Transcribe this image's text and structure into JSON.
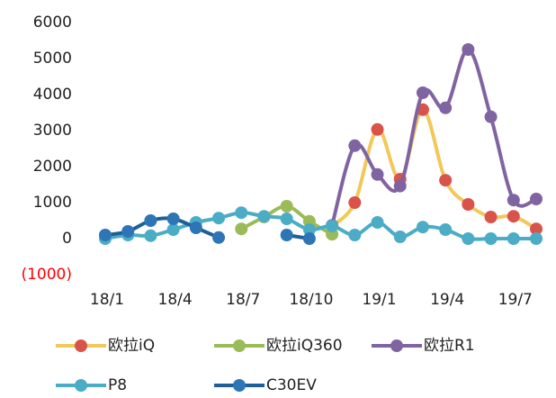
{
  "chart_data": {
    "type": "line",
    "categories": [
      "18/1",
      null,
      null,
      "18/4",
      null,
      null,
      "18/7",
      null,
      null,
      "18/10",
      null,
      null,
      "19/1",
      null,
      null,
      "19/4",
      null,
      null,
      "19/7",
      null
    ],
    "series": [
      {
        "name": "欧拉iQ",
        "color": "#f2c85b",
        "marker_color": "#d9534a",
        "values": [
          null,
          null,
          null,
          null,
          null,
          null,
          null,
          null,
          null,
          null,
          350,
          1000,
          3030,
          1650,
          3580,
          1620,
          950,
          600,
          620,
          270
        ]
      },
      {
        "name": "欧拉iQ360",
        "color": "#9bbb59",
        "marker_color": "#9bbb59",
        "values": [
          null,
          null,
          null,
          null,
          null,
          null,
          270,
          600,
          900,
          480,
          120,
          null,
          null,
          null,
          null,
          null,
          null,
          null,
          null,
          null
        ]
      },
      {
        "name": "欧拉R1",
        "color": "#8064a2",
        "marker_color": "#8064a2",
        "values": [
          null,
          null,
          null,
          null,
          null,
          null,
          null,
          null,
          null,
          null,
          370,
          2580,
          1780,
          1460,
          4050,
          3630,
          5250,
          3380,
          1070,
          1100
        ]
      },
      {
        "name": "P8",
        "color": "#4bacc6",
        "marker_color": "#4bacc6",
        "values": [
          0,
          100,
          80,
          250,
          450,
          570,
          720,
          620,
          550,
          250,
          350,
          100,
          450,
          50,
          320,
          250,
          0,
          0,
          0,
          0
        ]
      },
      {
        "name": "C30EV",
        "color": "#1f5f99",
        "marker_color": "#2e75b6",
        "values": [
          100,
          200,
          500,
          550,
          300,
          30,
          null,
          null,
          100,
          0,
          null,
          null,
          null,
          null,
          null,
          null,
          null,
          null,
          null,
          null
        ]
      }
    ],
    "ylim": [
      -1000,
      6000
    ],
    "yticks": [
      {
        "value": -1000,
        "label": "(1000)"
      },
      0,
      1000,
      2000,
      3000,
      4000,
      5000,
      6000
    ],
    "negative_label_color": "#ff0000",
    "grid": false,
    "legend": "bottom",
    "smooth": true
  }
}
